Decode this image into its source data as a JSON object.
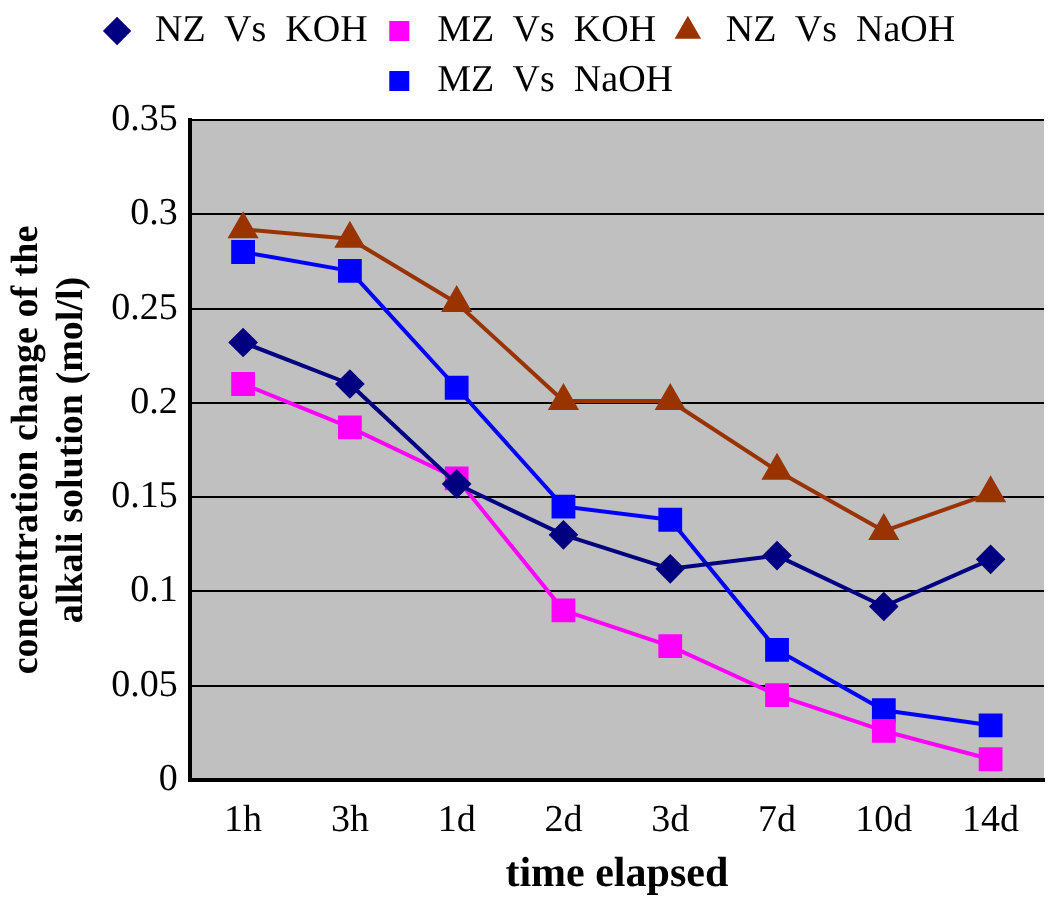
{
  "chart_data": {
    "type": "line",
    "xlabel": "time elapsed",
    "ylabel": "concentration change of the alkali solution (mol/l)",
    "categories": [
      "1h",
      "3h",
      "1d",
      "2d",
      "3d",
      "7d",
      "10d",
      "14d"
    ],
    "series": [
      {
        "name": "NZ  Vs  KOH",
        "color": "#000080",
        "marker": "diamond",
        "values": [
          0.232,
          0.21,
          0.157,
          0.13,
          0.112,
          0.119,
          0.092,
          0.117
        ]
      },
      {
        "name": "MZ  Vs  KOH",
        "color": "#ff00ff",
        "marker": "square",
        "values": [
          0.21,
          0.187,
          0.16,
          0.09,
          0.071,
          0.045,
          0.026,
          0.011
        ]
      },
      {
        "name": "NZ  Vs  NaOH",
        "color": "#993300",
        "marker": "triangle",
        "values": [
          0.292,
          0.287,
          0.253,
          0.201,
          0.201,
          0.164,
          0.132,
          0.152
        ]
      },
      {
        "name": "MZ  Vs  NaOH",
        "color": "#0000ff",
        "marker": "square",
        "values": [
          0.28,
          0.27,
          0.208,
          0.145,
          0.138,
          0.069,
          0.037,
          0.029
        ]
      }
    ],
    "ylim": [
      0,
      0.35
    ],
    "yticks": [
      0,
      0.05,
      0.1,
      0.15,
      0.2,
      0.25,
      0.3,
      0.35
    ],
    "grid": "y",
    "legend": "top"
  }
}
